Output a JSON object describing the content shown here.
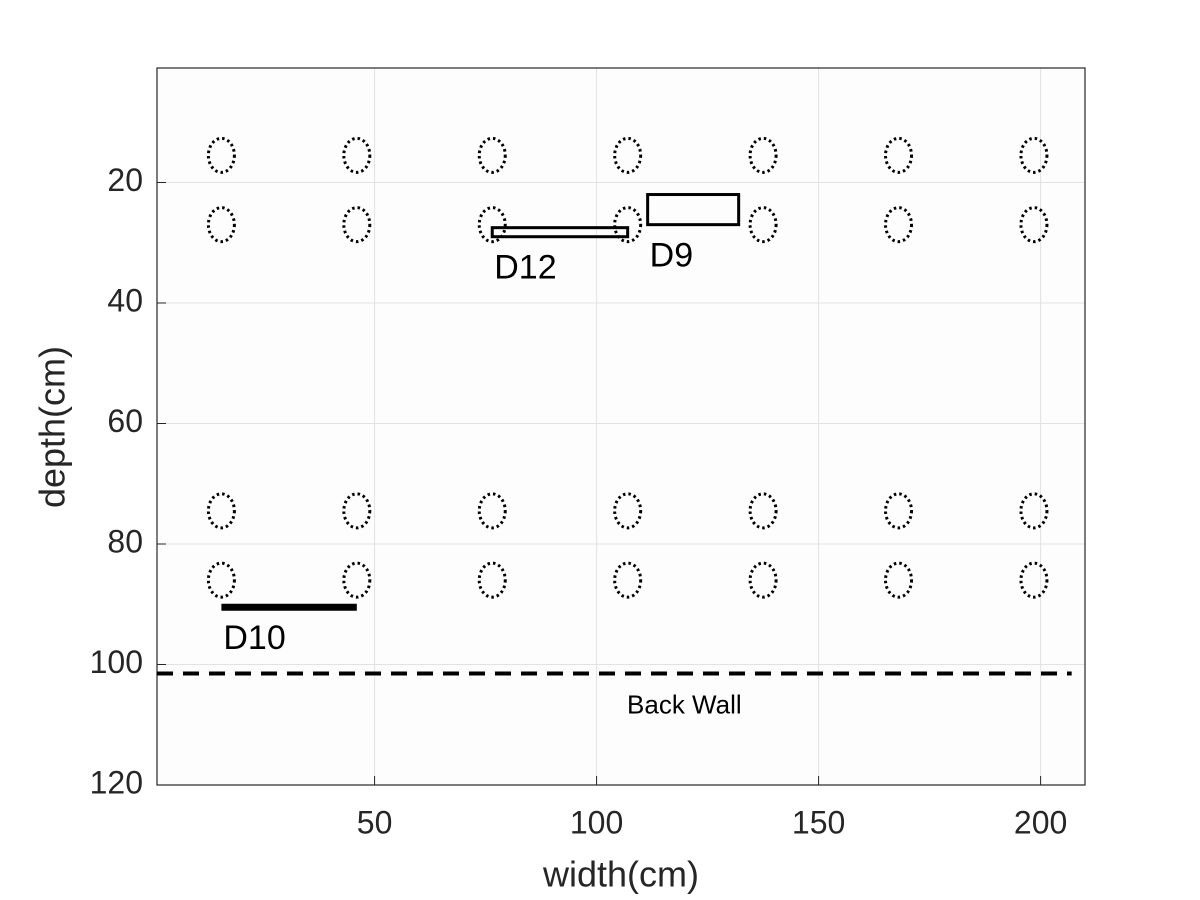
{
  "chart_data": {
    "type": "scatter",
    "xlabel": "width(cm)",
    "ylabel": "depth(cm)",
    "xlim": [
      1,
      210
    ],
    "ylim": [
      1,
      120
    ],
    "y_reversed": true,
    "xticks": [
      50,
      100,
      150,
      200
    ],
    "yticks": [
      20,
      40,
      60,
      80,
      100,
      120
    ],
    "grid": true,
    "color": "#000000",
    "x": [
      15.5,
      46,
      76.5,
      107,
      137.5,
      168,
      198.5,
      15.5,
      46,
      76.5,
      107,
      137.5,
      168,
      198.5,
      15.5,
      46,
      76.5,
      107,
      137.5,
      168,
      198.5,
      15.5,
      46,
      76.5,
      107,
      137.5,
      168,
      198.5
    ],
    "y": [
      15.5,
      15.5,
      15.5,
      15.5,
      15.5,
      15.5,
      15.5,
      27,
      27,
      27,
      27,
      27,
      27,
      27,
      74.5,
      74.5,
      74.5,
      74.5,
      74.5,
      74.5,
      74.5,
      86,
      86,
      86,
      86,
      86,
      86,
      86
    ],
    "devices": [
      {
        "name": "D12",
        "shape": "rect",
        "x": [
          76.5,
          107
        ],
        "y": [
          27.5,
          29
        ]
      },
      {
        "name": "D9",
        "shape": "rect",
        "x": [
          111.5,
          132
        ],
        "y": [
          22,
          27
        ]
      },
      {
        "name": "D10",
        "shape": "line",
        "x": [
          15.5,
          46
        ],
        "y": [
          90.5,
          90.5
        ]
      }
    ],
    "wall": {
      "name": "Back Wall",
      "x": [
        1,
        207
      ],
      "y": 101.5
    }
  }
}
